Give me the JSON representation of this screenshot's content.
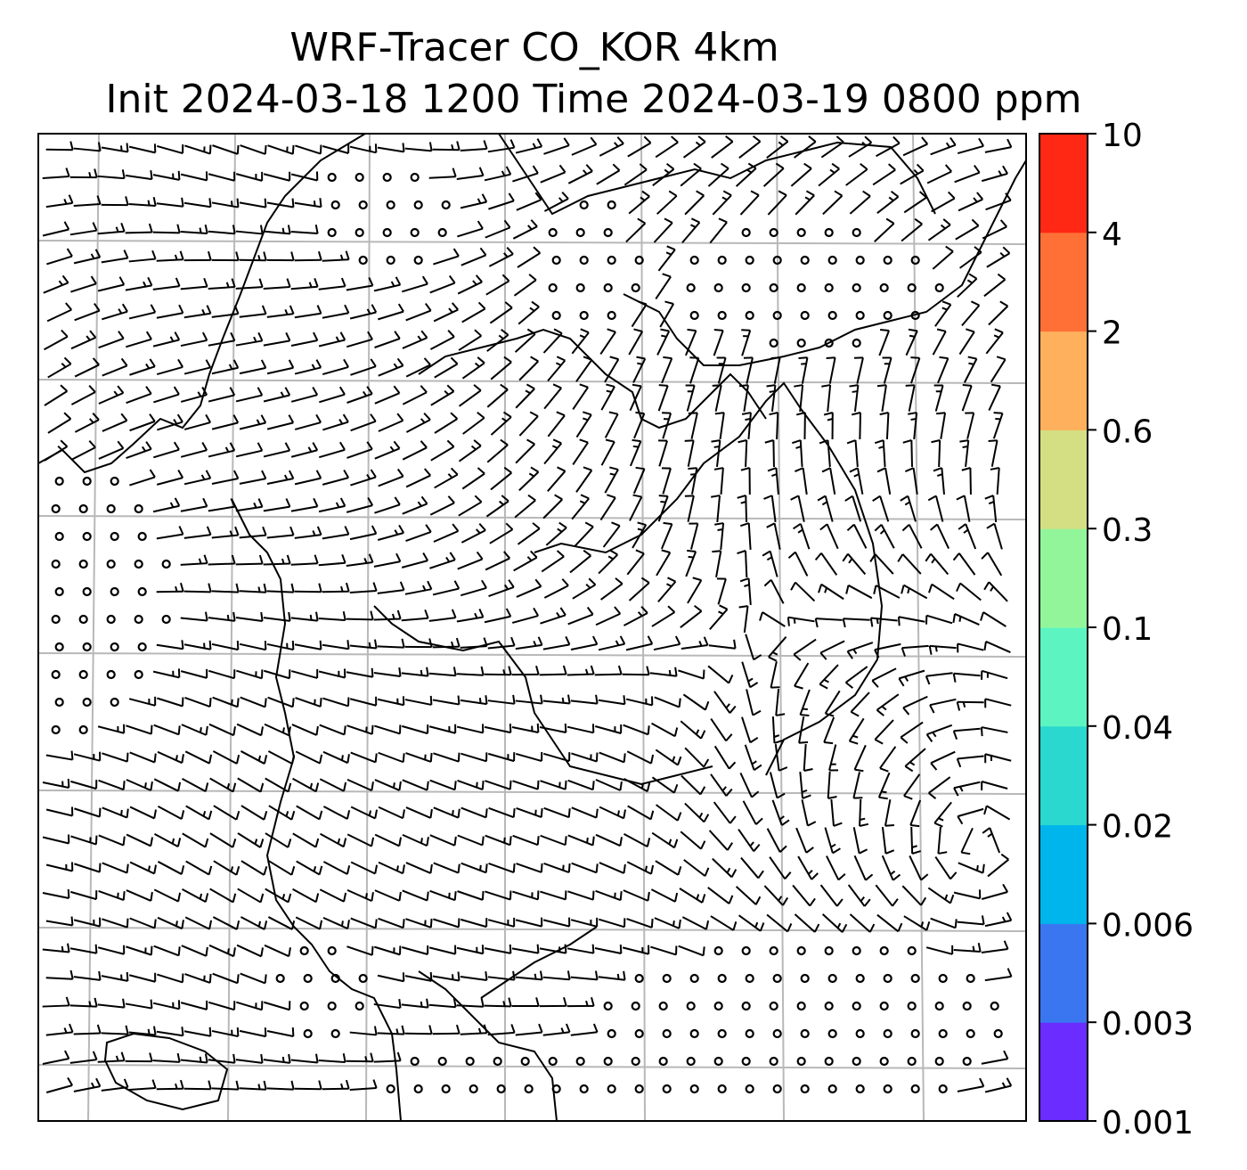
{
  "chart_data": {
    "type": "wind_barb_map",
    "title_line_1": "WRF-Tracer CO_KOR 4km",
    "title_line_2": "Init 2024-03-18 1200 Time 2024-03-19 0800 ppm",
    "grid": true,
    "basemap": "coastlines",
    "colorbar": {
      "orientation": "vertical",
      "placement": "right",
      "levels": [
        "0.001",
        "0.003",
        "0.006",
        "0.02",
        "0.04",
        "0.1",
        "0.3",
        "0.6",
        "2",
        "4",
        "10"
      ],
      "colors": [
        "#6a2cff",
        "#3a76f0",
        "#00b4ec",
        "#2ad8cf",
        "#5cf5c1",
        "#93f59a",
        "#d3df82",
        "#ffb05c",
        "#ff7036",
        "#ff2814"
      ]
    },
    "calm_regions": [
      "northwest inland",
      "west-central coast",
      "north-central plateau",
      "northeast interior",
      "south-southeast ocean"
    ]
  },
  "palette": {
    "frame": "#000000",
    "grid": "#b8b8b8",
    "barb": "#000000",
    "coast": "#000000"
  },
  "icons": {
    "calm": "calm-circle-icon",
    "barb": "wind-barb-icon"
  }
}
